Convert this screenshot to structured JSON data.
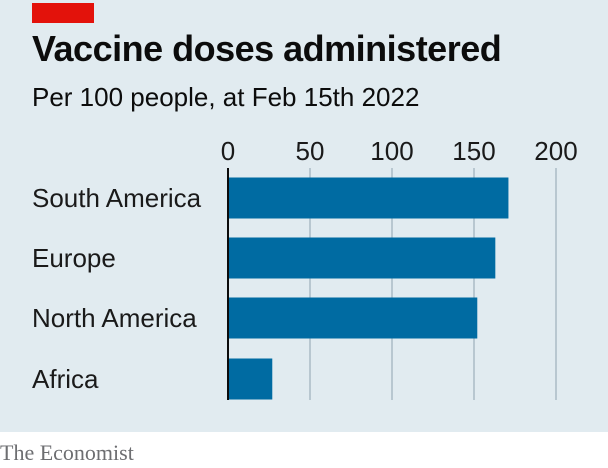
{
  "header": {
    "title": "Vaccine doses administered",
    "subtitle": "Per 100 people, at Feb 15th 2022"
  },
  "footer": {
    "source": "The Economist"
  },
  "colors": {
    "bar": "#006ba2",
    "panel": "#e1ebf0",
    "accent": "#e3120b",
    "grid": "#b8c7d0"
  },
  "chart_data": {
    "type": "bar",
    "orientation": "horizontal",
    "categories": [
      "South America",
      "Europe",
      "North America",
      "Africa"
    ],
    "values": [
      171,
      163,
      152,
      27
    ],
    "xlim": [
      0,
      200
    ],
    "xticks": [
      0,
      50,
      100,
      150,
      200
    ],
    "title": "Vaccine doses administered",
    "subtitle": "Per 100 people, at Feb 15th 2022",
    "grid": true,
    "axis_position": "top"
  }
}
